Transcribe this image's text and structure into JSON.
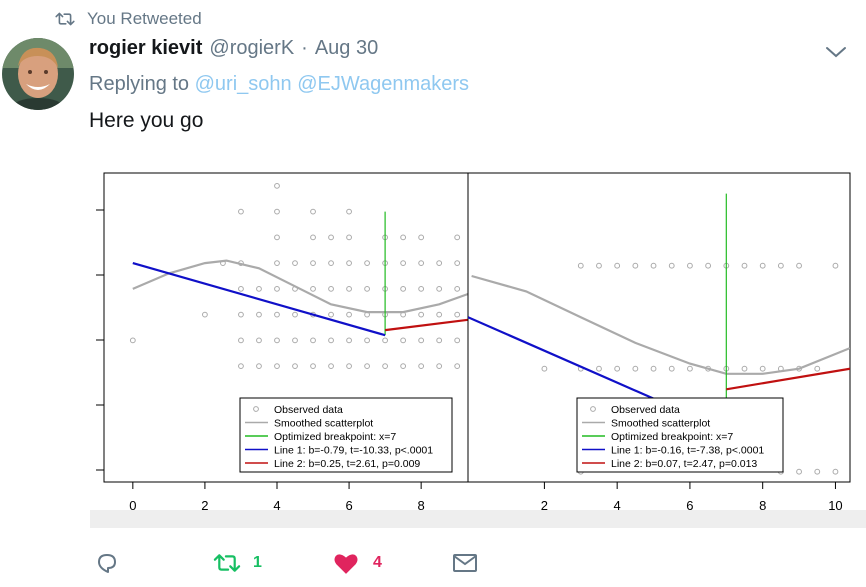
{
  "context": {
    "label": "You Retweeted",
    "icon": "retweet-icon"
  },
  "tweet": {
    "author_name": "rogier kievit",
    "handle": "@rogierK",
    "separator": "·",
    "date": "Aug 30",
    "replying_prefix": "Replying to",
    "reply_to_1": "@uri_sohn",
    "reply_to_2": "@EJWagenmakers",
    "text": "Here you go"
  },
  "actions": {
    "reply_count": "",
    "retweet_count": "1",
    "like_count": "4"
  },
  "colors": {
    "retweet_active": "#17bf63",
    "like_active": "#e0245e",
    "link": "#8fc8f0",
    "muted": "#657786"
  },
  "chart_data": [
    {
      "type": "scatter",
      "x_ticks": [
        "0",
        "2",
        "4",
        "6",
        "8"
      ],
      "xlim": [
        -0.8,
        9.3
      ],
      "ylim": [
        -2.5,
        9.5
      ],
      "series": [
        {
          "name": "Observed data",
          "kind": "points",
          "points": [
            [
              0,
              3
            ],
            [
              2,
              4
            ],
            [
              2.5,
              6
            ],
            [
              3,
              8
            ],
            [
              3,
              6
            ],
            [
              3,
              5
            ],
            [
              3,
              4
            ],
            [
              3,
              3
            ],
            [
              3,
              2
            ],
            [
              3.5,
              5
            ],
            [
              3.5,
              4
            ],
            [
              3.5,
              3
            ],
            [
              3.5,
              2
            ],
            [
              4,
              9
            ],
            [
              4,
              8
            ],
            [
              4,
              7
            ],
            [
              4,
              6
            ],
            [
              4,
              5
            ],
            [
              4,
              4
            ],
            [
              4,
              3
            ],
            [
              4,
              2
            ],
            [
              4.5,
              6
            ],
            [
              4.5,
              5
            ],
            [
              4.5,
              4
            ],
            [
              4.5,
              3
            ],
            [
              4.5,
              2
            ],
            [
              5,
              8
            ],
            [
              5,
              7
            ],
            [
              5,
              6
            ],
            [
              5,
              5
            ],
            [
              5,
              4
            ],
            [
              5,
              3
            ],
            [
              5,
              2
            ],
            [
              5.5,
              7
            ],
            [
              5.5,
              6
            ],
            [
              5.5,
              5
            ],
            [
              5.5,
              4
            ],
            [
              5.5,
              3
            ],
            [
              5.5,
              2
            ],
            [
              6,
              8
            ],
            [
              6,
              7
            ],
            [
              6,
              6
            ],
            [
              6,
              5
            ],
            [
              6,
              4
            ],
            [
              6,
              3
            ],
            [
              6,
              2
            ],
            [
              6.5,
              6
            ],
            [
              6.5,
              5
            ],
            [
              6.5,
              4
            ],
            [
              6.5,
              3
            ],
            [
              6.5,
              2
            ],
            [
              7,
              7
            ],
            [
              7,
              6
            ],
            [
              7,
              5
            ],
            [
              7,
              4
            ],
            [
              7,
              3
            ],
            [
              7,
              2
            ],
            [
              7.5,
              7
            ],
            [
              7.5,
              6
            ],
            [
              7.5,
              5
            ],
            [
              7.5,
              4
            ],
            [
              7.5,
              3
            ],
            [
              7.5,
              2
            ],
            [
              8,
              7
            ],
            [
              8,
              6
            ],
            [
              8,
              5
            ],
            [
              8,
              4
            ],
            [
              8,
              3
            ],
            [
              8,
              2
            ],
            [
              8.5,
              6
            ],
            [
              8.5,
              5
            ],
            [
              8.5,
              4
            ],
            [
              8.5,
              3
            ],
            [
              8.5,
              2
            ],
            [
              9,
              7
            ],
            [
              9,
              6
            ],
            [
              9,
              5
            ],
            [
              9,
              4
            ],
            [
              9,
              3
            ],
            [
              9,
              2
            ]
          ]
        },
        {
          "name": "Smoothed scatterplot",
          "kind": "line",
          "points": [
            [
              0,
              5.0
            ],
            [
              1,
              5.6
            ],
            [
              2,
              6.0
            ],
            [
              2.6,
              6.1
            ],
            [
              3.5,
              5.8
            ],
            [
              4.5,
              5.1
            ],
            [
              5.5,
              4.4
            ],
            [
              6.5,
              4.1
            ],
            [
              7.5,
              4.1
            ],
            [
              8.5,
              4.4
            ],
            [
              9.3,
              4.8
            ]
          ]
        },
        {
          "name": "Optimized breakpoint: x=7",
          "kind": "vline",
          "x": 7,
          "y_range": [
            3.2,
            8.0
          ]
        },
        {
          "name": "Line 1: b=-0.79, t=-10.33, p<.0001",
          "kind": "line",
          "points": [
            [
              0,
              6.0
            ],
            [
              7,
              3.2
            ]
          ]
        },
        {
          "name": "Line 2: b=0.25, t=2.61, p=0.009",
          "kind": "line",
          "points": [
            [
              7,
              3.4
            ],
            [
              9.3,
              3.8
            ]
          ]
        }
      ],
      "legend_position": "bottom-right",
      "colors": [
        "#aaaaaa",
        "#aaaaaa",
        "#22bb22",
        "#1010c8",
        "#c01010"
      ]
    },
    {
      "type": "scatter",
      "x_ticks": [
        "2",
        "4",
        "6",
        "8",
        "10"
      ],
      "xlim": [
        -0.1,
        10.4
      ],
      "ylim": [
        -0.1,
        2.9
      ],
      "series": [
        {
          "name": "Observed data",
          "kind": "points",
          "points": [
            [
              2.5,
              3
            ],
            [
              3,
              3
            ],
            [
              3.5,
              3
            ],
            [
              4,
              3
            ],
            [
              4.5,
              3
            ],
            [
              5,
              3
            ],
            [
              5.5,
              3
            ],
            [
              6,
              3
            ],
            [
              6.5,
              3
            ],
            [
              7,
              3
            ],
            [
              7.5,
              3
            ],
            [
              8,
              3
            ],
            [
              8.5,
              3
            ],
            [
              9,
              3
            ],
            [
              10,
              3
            ],
            [
              3,
              2
            ],
            [
              3.5,
              2
            ],
            [
              4,
              2
            ],
            [
              4.5,
              2
            ],
            [
              5,
              2
            ],
            [
              5.5,
              2
            ],
            [
              6,
              2
            ],
            [
              6.5,
              2
            ],
            [
              7,
              2
            ],
            [
              7.5,
              2
            ],
            [
              8,
              2
            ],
            [
              8.5,
              2
            ],
            [
              9,
              2
            ],
            [
              10,
              2
            ],
            [
              2,
              1
            ],
            [
              3,
              1
            ],
            [
              3.5,
              1
            ],
            [
              4,
              1
            ],
            [
              4.5,
              1
            ],
            [
              5,
              1
            ],
            [
              5.5,
              1
            ],
            [
              6,
              1
            ],
            [
              6.5,
              1
            ],
            [
              7,
              1
            ],
            [
              7.5,
              1
            ],
            [
              8,
              1
            ],
            [
              8.5,
              1
            ],
            [
              9,
              1
            ],
            [
              9.5,
              1
            ],
            [
              3,
              0
            ],
            [
              8.5,
              0
            ],
            [
              9,
              0
            ],
            [
              9.5,
              0
            ],
            [
              10,
              0
            ]
          ]
        },
        {
          "name": "Smoothed scatterplot",
          "kind": "line",
          "points": [
            [
              0,
              1.9
            ],
            [
              1.5,
              1.75
            ],
            [
              3,
              1.5
            ],
            [
              4.5,
              1.25
            ],
            [
              6,
              1.05
            ],
            [
              7,
              0.95
            ],
            [
              8,
              0.95
            ],
            [
              9,
              1.0
            ],
            [
              10.4,
              1.2
            ]
          ]
        },
        {
          "name": "Optimized breakpoint: x=7",
          "kind": "vline",
          "x": 7,
          "y_range": [
            0.4,
            2.7
          ]
        },
        {
          "name": "Line 1: b=-0.16, t=-7.38, p<.0001",
          "kind": "line",
          "points": [
            [
              -0.1,
              1.5
            ],
            [
              7,
              0.4
            ]
          ]
        },
        {
          "name": "Line 2: b=0.07, t=2.47, p=0.013",
          "kind": "line",
          "points": [
            [
              7,
              0.8
            ],
            [
              10.4,
              1.0
            ]
          ]
        }
      ],
      "legend_position": "bottom-right",
      "colors": [
        "#aaaaaa",
        "#aaaaaa",
        "#22bb22",
        "#1010c8",
        "#c01010"
      ]
    }
  ]
}
